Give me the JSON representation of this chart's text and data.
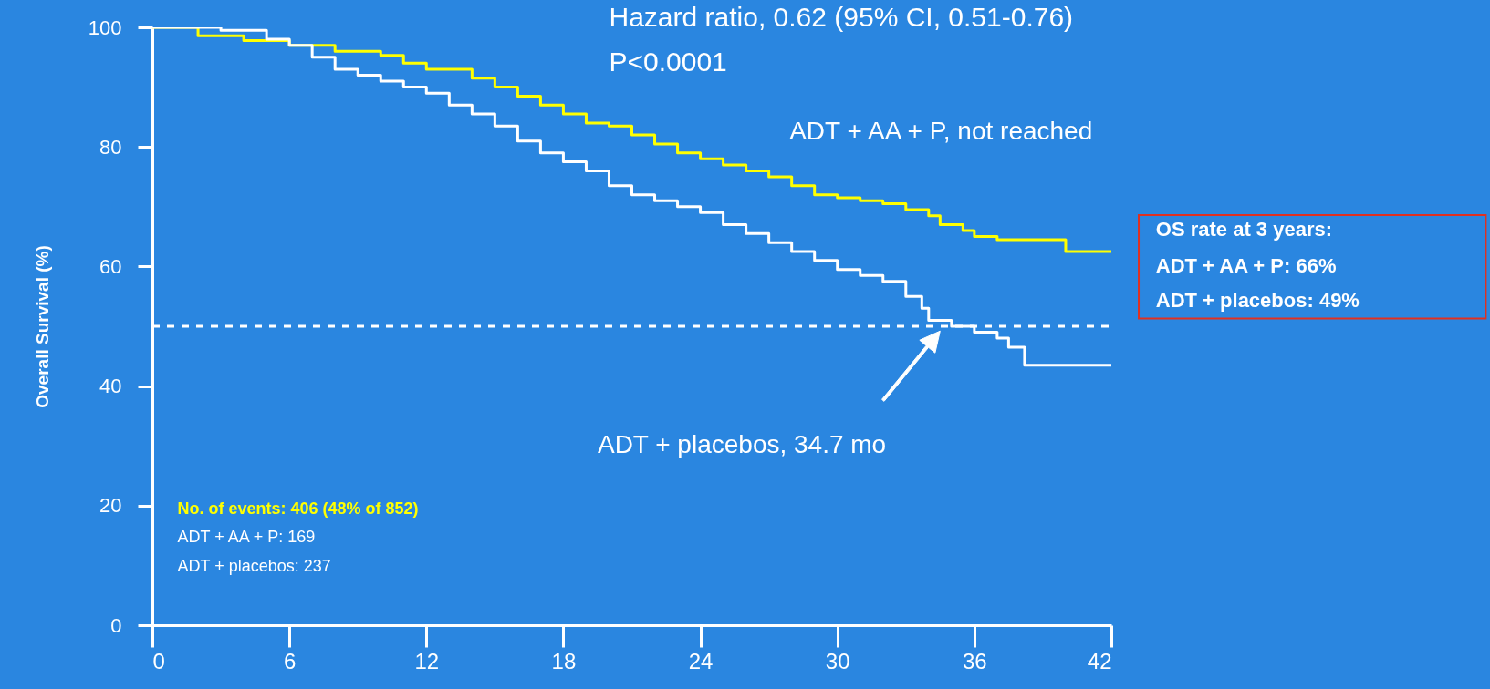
{
  "chart_data": {
    "type": "step",
    "ylabel": "Overall Survival (%)",
    "xlim": [
      0,
      42
    ],
    "xticks": [
      0,
      6,
      12,
      18,
      24,
      30,
      36,
      42
    ],
    "ylim": [
      0,
      100
    ],
    "yticks": [
      0,
      20,
      40,
      60,
      80,
      100
    ],
    "grid": false,
    "line_style": "solid",
    "marker": "none",
    "series": [
      {
        "color": "#ffff00",
        "x": [
          0,
          2,
          4,
          6,
          8,
          10,
          11,
          12,
          14,
          15,
          16,
          17,
          18,
          19,
          20,
          21,
          22,
          23,
          24,
          25,
          26,
          27,
          28,
          29,
          30,
          31,
          32,
          33,
          34,
          34.5,
          35.5,
          36,
          37,
          39.8,
          40,
          42
        ],
        "values": [
          100,
          98.6,
          97.8,
          97,
          96,
          95.3,
          94,
          93,
          91.5,
          90,
          88.5,
          87,
          85.5,
          84,
          83.5,
          82,
          80.5,
          79,
          78,
          77,
          76,
          75,
          73.5,
          72,
          71.5,
          71,
          70.5,
          69.5,
          68.5,
          67,
          66,
          65,
          64.5,
          64.5,
          62.5,
          62.5
        ]
      },
      {
        "color": "#ffffff",
        "x": [
          0,
          3,
          5,
          6,
          7,
          8,
          9,
          10,
          11,
          12,
          13,
          14,
          15,
          16,
          17,
          18,
          19,
          20,
          21,
          22,
          23,
          24,
          25,
          26,
          27,
          28,
          29,
          30,
          31,
          32,
          33,
          33.7,
          34,
          35,
          36,
          37,
          37.5,
          38.2,
          42
        ],
        "values": [
          100,
          99.5,
          98,
          97,
          95,
          93,
          92,
          91,
          90,
          89,
          87,
          85.5,
          83.5,
          81,
          79,
          77.5,
          76,
          73.5,
          72,
          71,
          70,
          69,
          67,
          65.5,
          64,
          62.5,
          61,
          59.5,
          58.5,
          57.5,
          55,
          53,
          51,
          50,
          49,
          48,
          46.5,
          43.5,
          43.5
        ]
      }
    ],
    "ref_lines": [
      {
        "axis": "y",
        "value": 50,
        "color": "#ffffff",
        "line_style": "dashed"
      }
    ],
    "annotations": [
      "Hazard ratio, 0.62 (95% CI, 0.51-0.76)",
      "P<0.0001",
      "ADT + AA + P, not reached",
      "ADT + placebos, 34.7 mo",
      "No. of events: 406 (48% of 852)",
      "ADT + AA + P: 169",
      "ADT + placebos: 237",
      "OS rate at 3 years:",
      "ADT + AA + P:  66%",
      "ADT + placebos: 49%"
    ]
  }
}
